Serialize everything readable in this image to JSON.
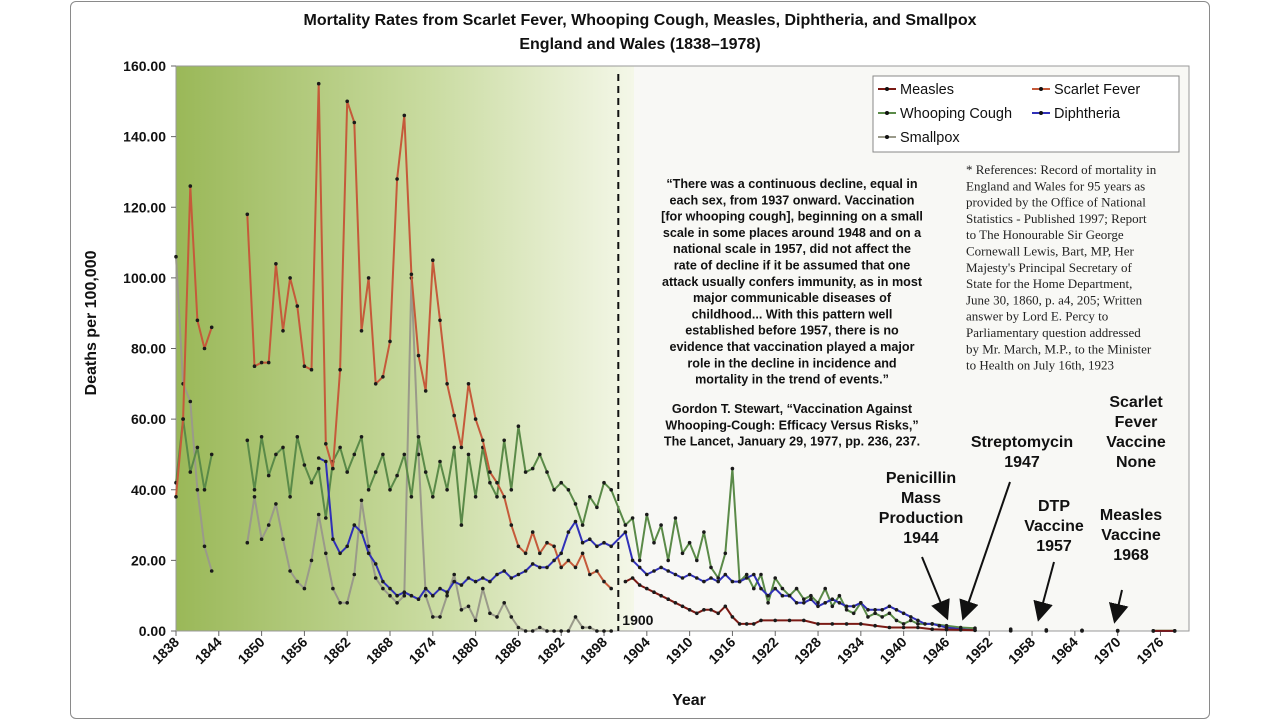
{
  "chart_data": {
    "type": "line",
    "title": "Mortality Rates from Scarlet Fever, Whooping Cough, Measles, Diphtheria, and Smallpox",
    "subtitle": "England and Wales (1838–1978)",
    "xlabel": "Year",
    "ylabel": "Deaths per 100,000",
    "xlim": [
      1838,
      1980
    ],
    "ylim": [
      0,
      160
    ],
    "y_ticks": [
      "0.00",
      "20.00",
      "40.00",
      "60.00",
      "80.00",
      "100.00",
      "120.00",
      "140.00",
      "160.00"
    ],
    "x_ticks": [
      "1838",
      "1844",
      "1850",
      "1856",
      "1862",
      "1868",
      "1874",
      "1880",
      "1886",
      "1892",
      "1898",
      "1904",
      "1910",
      "1916",
      "1922",
      "1928",
      "1934",
      "1940",
      "1946",
      "1952",
      "1958",
      "1964",
      "1970",
      "1976"
    ],
    "legend_position": "top-right",
    "legend": [
      {
        "label": "Measles",
        "color": "#222222"
      },
      {
        "label": "Scarlet Fever",
        "color": "#c0392b"
      },
      {
        "label": "Whooping Cough",
        "color": "#4a7a3a"
      },
      {
        "label": "Diphtheria",
        "color": "#2a2ab0"
      },
      {
        "label": "Smallpox",
        "color": "#808080"
      }
    ],
    "divider": {
      "year": 1900,
      "label": "1900"
    },
    "series": [
      {
        "name": "Measles",
        "color": "#222222",
        "x": [
          1901,
          1902,
          1903,
          1904,
          1905,
          1906,
          1907,
          1908,
          1909,
          1910,
          1911,
          1912,
          1913,
          1914,
          1915,
          1916,
          1917,
          1918,
          1919,
          1920,
          1922,
          1924,
          1926,
          1928,
          1930,
          1932,
          1934,
          1936,
          1938,
          1940,
          1942,
          1944,
          1946,
          1948,
          1950,
          1955,
          1960,
          1965,
          1970,
          1975,
          1978
        ],
        "y": [
          14,
          15,
          13,
          12,
          11,
          10,
          9,
          8,
          7,
          6,
          5,
          6,
          6,
          5,
          7,
          4,
          2,
          2,
          2,
          3,
          3,
          3,
          3,
          2,
          2,
          2,
          2,
          1.5,
          1,
          1,
          1,
          0.5,
          0.4,
          0.3,
          0.2,
          0.1,
          0.1,
          0.1,
          0.05,
          0.02,
          0.02
        ]
      },
      {
        "name": "Scarlet Fever",
        "color": "#c0392b",
        "x": [
          1838,
          1839,
          1840,
          1841,
          1842,
          1843,
          1848,
          1849,
          1850,
          1851,
          1852,
          1853,
          1854,
          1855,
          1856,
          1857,
          1858,
          1859,
          1860,
          1861,
          1862,
          1863,
          1864,
          1865,
          1866,
          1867,
          1868,
          1869,
          1870,
          1871,
          1872,
          1873,
          1874,
          1875,
          1876,
          1877,
          1878,
          1879,
          1880,
          1881,
          1882,
          1883,
          1884,
          1885,
          1886,
          1887,
          1888,
          1889,
          1890,
          1891,
          1892,
          1893,
          1894,
          1895,
          1896,
          1897,
          1898,
          1899
        ],
        "y": [
          38,
          60,
          126,
          88,
          80,
          86,
          118,
          75,
          76,
          76,
          104,
          85,
          100,
          92,
          75,
          74,
          155,
          53,
          46,
          74,
          150,
          144,
          85,
          100,
          70,
          72,
          82,
          128,
          146,
          101,
          78,
          68,
          105,
          88,
          70,
          61,
          52,
          70,
          60,
          54,
          45,
          42,
          38,
          30,
          24,
          22,
          28,
          22,
          25,
          24,
          18,
          20,
          18,
          22,
          16,
          17,
          14,
          12
        ]
      },
      {
        "name": "Whooping Cough",
        "color": "#4a7a3a",
        "x": [
          1838,
          1839,
          1840,
          1841,
          1842,
          1843,
          1848,
          1849,
          1850,
          1851,
          1852,
          1853,
          1854,
          1855,
          1856,
          1857,
          1858,
          1859,
          1860,
          1861,
          1862,
          1863,
          1864,
          1865,
          1866,
          1867,
          1868,
          1869,
          1870,
          1871,
          1872,
          1873,
          1874,
          1875,
          1876,
          1877,
          1878,
          1879,
          1880,
          1881,
          1882,
          1883,
          1884,
          1885,
          1886,
          1887,
          1888,
          1889,
          1890,
          1891,
          1892,
          1893,
          1894,
          1895,
          1896,
          1897,
          1898,
          1899,
          1901,
          1902,
          1903,
          1904,
          1905,
          1906,
          1907,
          1908,
          1909,
          1910,
          1911,
          1912,
          1913,
          1914,
          1915,
          1916,
          1917,
          1918,
          1919,
          1920,
          1921,
          1922,
          1923,
          1924,
          1925,
          1926,
          1927,
          1928,
          1929,
          1930,
          1931,
          1932,
          1933,
          1934,
          1935,
          1936,
          1937,
          1938,
          1939,
          1940,
          1941,
          1942,
          1944,
          1946,
          1948,
          1950,
          1955,
          1960,
          1965,
          1970,
          1975,
          1978
        ],
        "y": [
          42,
          60,
          45,
          52,
          40,
          50,
          54,
          40,
          55,
          44,
          50,
          52,
          38,
          55,
          47,
          42,
          46,
          32,
          48,
          52,
          45,
          50,
          55,
          40,
          45,
          50,
          40,
          44,
          50,
          38,
          55,
          45,
          38,
          48,
          40,
          52,
          30,
          50,
          38,
          52,
          42,
          38,
          54,
          40,
          58,
          45,
          46,
          50,
          45,
          40,
          42,
          40,
          36,
          30,
          38,
          35,
          42,
          40,
          30,
          32,
          20,
          33,
          25,
          30,
          20,
          32,
          22,
          25,
          20,
          28,
          18,
          15,
          22,
          46,
          14,
          16,
          12,
          16,
          8,
          15,
          12,
          10,
          12,
          9,
          10,
          8,
          12,
          7,
          10,
          6,
          5,
          8,
          4,
          5,
          4,
          5,
          3,
          2,
          3,
          2,
          2,
          1.5,
          1,
          0.8,
          0.5,
          0.3,
          0.2,
          0.1,
          0.05,
          0.05
        ]
      },
      {
        "name": "Diphtheria",
        "color": "#2a2ab0",
        "x": [
          1858,
          1859,
          1860,
          1861,
          1862,
          1863,
          1864,
          1865,
          1866,
          1867,
          1868,
          1869,
          1870,
          1871,
          1872,
          1873,
          1874,
          1875,
          1876,
          1877,
          1878,
          1879,
          1880,
          1881,
          1882,
          1883,
          1884,
          1885,
          1886,
          1887,
          1888,
          1889,
          1890,
          1891,
          1892,
          1893,
          1894,
          1895,
          1896,
          1897,
          1898,
          1899,
          1901,
          1902,
          1903,
          1904,
          1905,
          1906,
          1907,
          1908,
          1909,
          1910,
          1911,
          1912,
          1913,
          1914,
          1915,
          1916,
          1917,
          1918,
          1919,
          1920,
          1921,
          1922,
          1923,
          1924,
          1925,
          1926,
          1927,
          1928,
          1929,
          1930,
          1931,
          1932,
          1933,
          1934,
          1935,
          1936,
          1937,
          1938,
          1939,
          1940,
          1941,
          1942,
          1943,
          1944,
          1945,
          1946,
          1948,
          1950,
          1955,
          1960,
          1965,
          1970,
          1975,
          1978
        ],
        "y": [
          49,
          48,
          26,
          22,
          24,
          30,
          28,
          22,
          19,
          14,
          12,
          10,
          11,
          10,
          9,
          12,
          10,
          12,
          11,
          14,
          13,
          15,
          14,
          15,
          14,
          16,
          17,
          15,
          16,
          17,
          19,
          18,
          18,
          20,
          22,
          28,
          31,
          25,
          26,
          24,
          25,
          24,
          28,
          20,
          18,
          16,
          17,
          18,
          17,
          16,
          15,
          16,
          15,
          14,
          15,
          14,
          16,
          14,
          14,
          15,
          16,
          12,
          10,
          12,
          10,
          10,
          8,
          8,
          9,
          7,
          8,
          9,
          8,
          7,
          7,
          8,
          6,
          6,
          6,
          7,
          6,
          5,
          4,
          3,
          2,
          2,
          1.5,
          1,
          0.5,
          0.2,
          0.05,
          0.02,
          0.01,
          0,
          0,
          0
        ]
      },
      {
        "name": "Smallpox",
        "color": "#808080",
        "x": [
          1838,
          1839,
          1840,
          1841,
          1842,
          1843,
          1848,
          1849,
          1850,
          1851,
          1852,
          1853,
          1854,
          1855,
          1856,
          1857,
          1858,
          1859,
          1860,
          1861,
          1862,
          1863,
          1864,
          1865,
          1866,
          1867,
          1868,
          1869,
          1870,
          1871,
          1872,
          1873,
          1874,
          1875,
          1876,
          1877,
          1878,
          1879,
          1880,
          1881,
          1882,
          1883,
          1884,
          1885,
          1886,
          1887,
          1888,
          1889,
          1890,
          1891,
          1892,
          1893,
          1894,
          1895,
          1896,
          1897,
          1898,
          1899
        ],
        "y": [
          106,
          70,
          65,
          40,
          24,
          17,
          25,
          38,
          26,
          30,
          36,
          26,
          17,
          14,
          12,
          20,
          33,
          22,
          12,
          8,
          8,
          16,
          37,
          24,
          15,
          12,
          10,
          8,
          10,
          100,
          50,
          10,
          4,
          4,
          10,
          16,
          6,
          7,
          3,
          12,
          5,
          4,
          8,
          4,
          1,
          0,
          0,
          1,
          0,
          0,
          0,
          0,
          4,
          1,
          1,
          0,
          0,
          0
        ]
      }
    ]
  },
  "quote": {
    "lines": [
      "“There was a continuous decline, equal in",
      "each sex, from 1937 onward. Vaccination",
      "[for whooping cough], beginning on a small",
      "scale in some places around 1948 and on a",
      "national scale in 1957, did not affect the",
      "rate of decline if it be assumed that one",
      "attack usually confers immunity, as in most",
      "major communicable diseases of",
      "childhood... With this pattern well",
      "established before 1957, there is no",
      "evidence that vaccination played a major",
      "role in the decline in incidence and",
      "mortality in the trend of events.”"
    ],
    "citation_lines": [
      "Gordon T. Stewart, “Vaccination Against",
      "Whooping-Cough: Efficacy Versus Risks,”",
      "The Lancet, January 29, 1977, pp. 236, 237."
    ]
  },
  "references": {
    "lines": [
      "* References: Record of mortality in",
      "England and Wales for 95 years as",
      "provided by the Office of National",
      "Statistics - Published 1997; Report",
      "to The Honourable Sir George",
      "Cornewall Lewis, Bart, MP, Her",
      "Majesty's Principal Secretary of",
      "State for the Home Department,",
      "June 30, 1860, p. a4, 205; Written",
      "answer by Lord E. Percy to",
      "Parliamentary question addressed",
      "by Mr. March, M.P., to the Minister",
      "to Health on July 16th, 1923"
    ]
  },
  "annotations": [
    {
      "lines": [
        "Penicillin",
        "Mass",
        "Production",
        "1944"
      ],
      "year": 1944
    },
    {
      "lines": [
        "Streptomycin",
        "1947"
      ],
      "year": 1947
    },
    {
      "lines": [
        "DTP",
        "Vaccine",
        "1957"
      ],
      "year": 1957
    },
    {
      "lines": [
        "Scarlet",
        "Fever",
        "Vaccine",
        "None"
      ]
    },
    {
      "lines": [
        "Measles",
        "Vaccine",
        "1968"
      ],
      "year": 1968
    }
  ]
}
